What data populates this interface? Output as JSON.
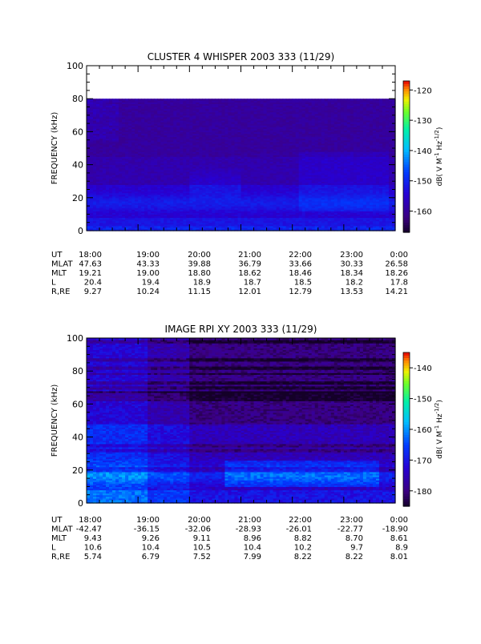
{
  "chart_data": [
    {
      "type": "heatmap",
      "title": "CLUSTER 4 WHISPER 2003 333 (11/29)",
      "ylabel": "FREQUENCY (kHz)",
      "ylim": [
        0,
        100
      ],
      "yticks": [
        "0",
        "20",
        "40",
        "60",
        "80",
        "100"
      ],
      "xticks": [
        "18:00",
        "19:00",
        "20:00",
        "21:00",
        "22:00",
        "23:00",
        "0:00"
      ],
      "xlim": [
        "18:00",
        "0:00"
      ],
      "data_fmax_khz": 80,
      "colorbar": {
        "range": [
          -167,
          -117
        ],
        "ticks": [
          "-120",
          "-130",
          "-140",
          "-150",
          "-160"
        ],
        "label_pre": "dB( V M",
        "label_sup1": "-1",
        "label_mid": " Hz",
        "label_sup2": "-1/2",
        "label_post": ")"
      },
      "orbit": {
        "names": [
          "UT",
          "MLAT",
          "MLT",
          "L",
          "R,RE"
        ],
        "rows": [
          [
            "18:00",
            "19:00",
            "20:00",
            "21:00",
            "22:00",
            "23:00",
            "0:00"
          ],
          [
            "47.63",
            "43.33",
            "39.88",
            "36.79",
            "33.66",
            "30.33",
            "26.58"
          ],
          [
            "19.21",
            "19.00",
            "18.80",
            "18.62",
            "18.46",
            "18.34",
            "18.26"
          ],
          [
            "20.4",
            "19.4",
            "18.9",
            "18.7",
            "18.5",
            "18.2",
            "17.8"
          ],
          [
            "9.27",
            "10.24",
            "11.15",
            "12.01",
            "12.79",
            "13.53",
            "14.21"
          ]
        ]
      }
    },
    {
      "type": "heatmap",
      "title": "IMAGE RPI XY 2003 333 (11/29)",
      "ylabel": "FREQUENCY (kHz)",
      "ylim": [
        0,
        100
      ],
      "yticks": [
        "0",
        "20",
        "40",
        "60",
        "80",
        "100"
      ],
      "xticks": [
        "18:00",
        "19:00",
        "20:00",
        "21:00",
        "22:00",
        "23:00",
        "0:00"
      ],
      "xlim": [
        "18:00",
        "0:00"
      ],
      "data_fmax_khz": 100,
      "colorbar": {
        "range": [
          -185,
          -135
        ],
        "ticks": [
          "-140",
          "-150",
          "-160",
          "-170",
          "-180"
        ],
        "label_pre": "dB( V M",
        "label_sup1": "-1",
        "label_mid": " Hz",
        "label_sup2": "-1/2",
        "label_post": ")"
      },
      "orbit": {
        "names": [
          "UT",
          "MLAT",
          "MLT",
          "L",
          "R,RE"
        ],
        "rows": [
          [
            "18:00",
            "19:00",
            "20:00",
            "21:00",
            "22:00",
            "23:00",
            "0:00"
          ],
          [
            "-42.47",
            "-36.15",
            "-32.06",
            "-28.93",
            "-26.01",
            "-22.77",
            "-18.90"
          ],
          [
            "9.43",
            "9.26",
            "9.11",
            "8.96",
            "8.82",
            "8.70",
            "8.61"
          ],
          [
            "10.6",
            "10.4",
            "10.5",
            "10.4",
            "10.2",
            "9.7",
            "8.9"
          ],
          [
            "5.74",
            "6.79",
            "7.52",
            "7.99",
            "8.22",
            "8.22",
            "8.01"
          ]
        ]
      }
    }
  ]
}
